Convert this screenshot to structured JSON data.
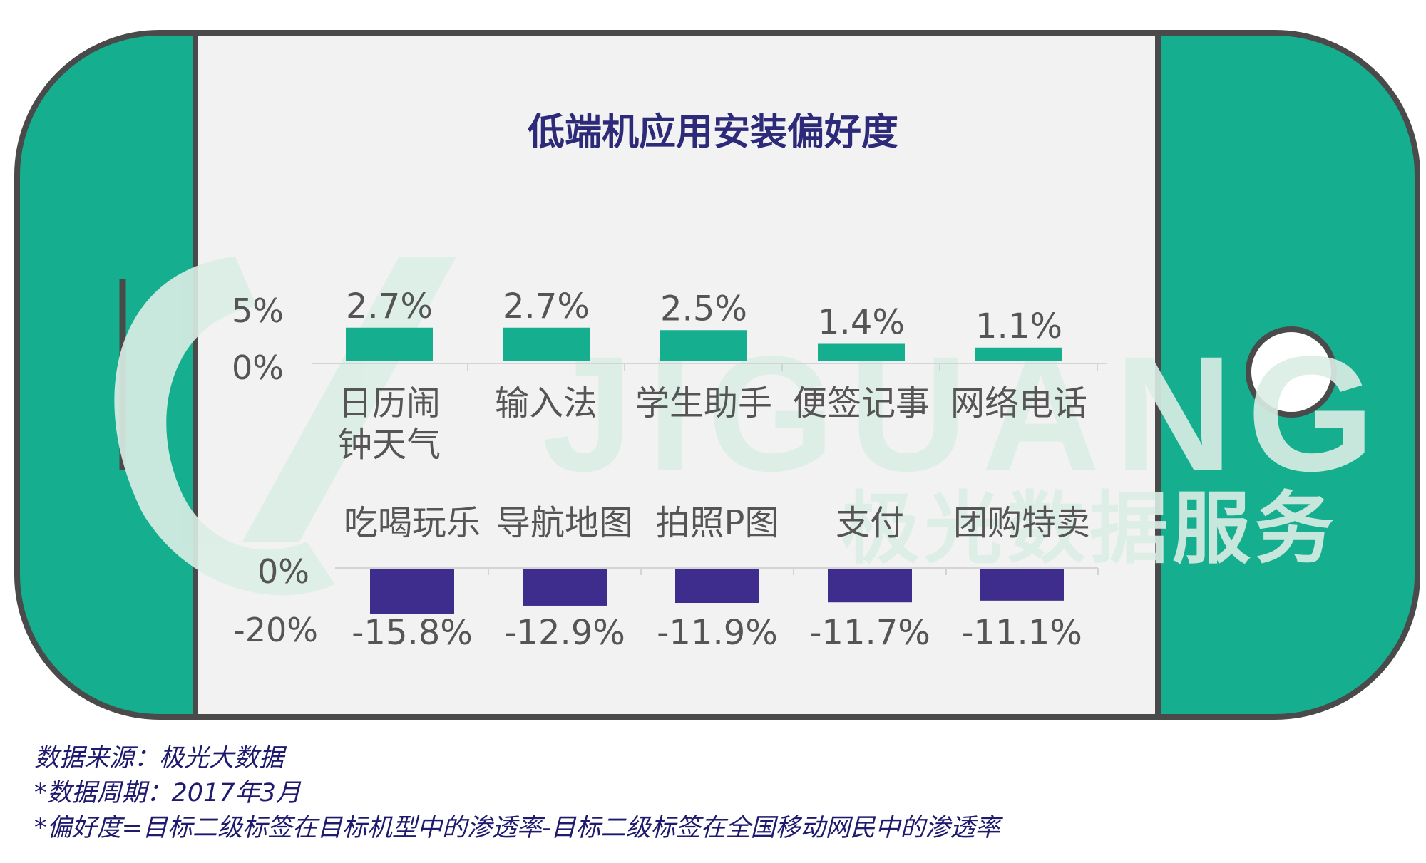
{
  "colors": {
    "phone_body": "#15ae8f",
    "phone_outline": "#4a4a4a",
    "screen": "#f2f2f2",
    "positive_bar": "#15ae8f",
    "negative_bar": "#3f2d8d",
    "title": "#2e2a7a",
    "text": "#555555",
    "note": "#1f1a6e",
    "watermark": "#dbeee6"
  },
  "watermark": {
    "text_en": "JIGUANG",
    "text_cn": "极光数据服务"
  },
  "chart_data": [
    {
      "type": "bar",
      "title": "低端机应用安装偏好度",
      "categories": [
        "日历闹钟天气",
        "输入法",
        "学生助手",
        "便签记事",
        "网络电话"
      ],
      "category_lines": [
        [
          "日历闹",
          "钟天气"
        ],
        [
          "输入法"
        ],
        [
          "学生助手"
        ],
        [
          "便签记事"
        ],
        [
          "网络电话"
        ]
      ],
      "values": [
        2.7,
        2.7,
        2.5,
        1.4,
        1.1
      ],
      "data_labels": [
        "2.7%",
        "2.7%",
        "2.5%",
        "1.4%",
        "1.1%"
      ],
      "ylim": [
        0,
        5
      ],
      "yticks": [
        "0%",
        "5%"
      ],
      "color": "#15ae8f",
      "grid": false
    },
    {
      "type": "bar",
      "categories": [
        "吃喝玩乐",
        "导航地图",
        "拍照P图",
        "支付",
        "团购特卖"
      ],
      "values": [
        -15.8,
        -12.9,
        -11.9,
        -11.7,
        -11.1
      ],
      "data_labels": [
        "-15.8%",
        "-12.9%",
        "-11.9%",
        "-11.7%",
        "-11.1%"
      ],
      "ylim": [
        -20,
        0
      ],
      "yticks": [
        "0%",
        "-20%"
      ],
      "color": "#3f2d8d",
      "grid": false
    }
  ],
  "notes": [
    "数据来源：极光大数据",
    "*数据周期：2017年3月",
    "*偏好度=目标二级标签在目标机型中的渗透率-目标二级标签在全国移动网民中的渗透率"
  ]
}
